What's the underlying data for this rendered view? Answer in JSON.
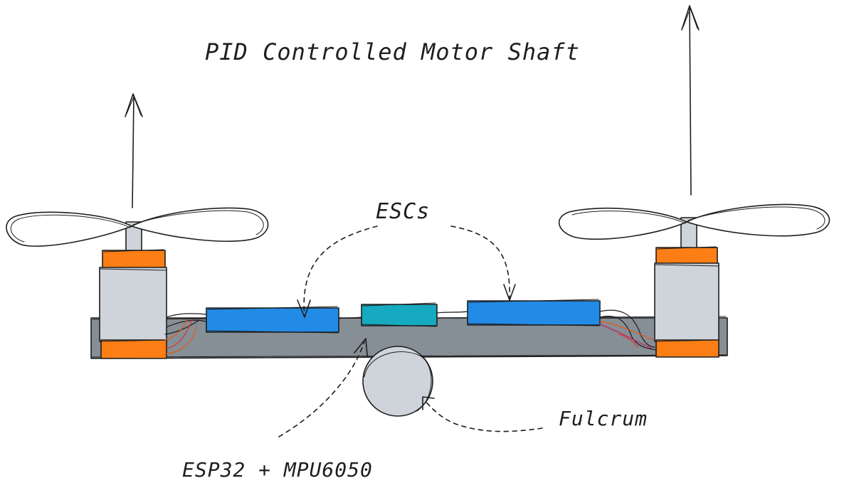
{
  "diagram": {
    "title": "PID Controlled Motor Shaft",
    "labels": {
      "escs": "ESCs",
      "fulcrum": "Fulcrum",
      "controller": "ESP32 + MPU6050"
    }
  },
  "colors": {
    "stroke": "#1e1e1e",
    "beam": "#868e96",
    "motor_body": "#ced4da",
    "motor_cap": "#fd7e14",
    "esc": "#228be6",
    "controller_board": "#15aabf",
    "fulcrum": "#ced4da",
    "wire_orange": "#e8590c",
    "wire_red": "#e03131",
    "wire_magenta": "#c2255c"
  }
}
